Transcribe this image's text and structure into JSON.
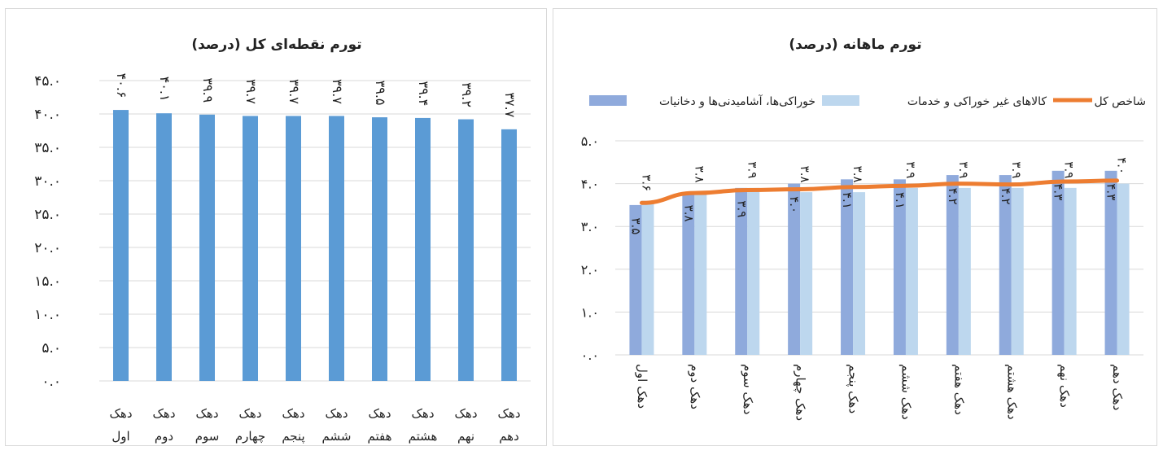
{
  "chart_data": [
    {
      "type": "bar",
      "title": "تورم نقطه‌ای کل (درصد)",
      "categories": [
        "دهک اول",
        "دهک دوم",
        "دهک سوم",
        "دهک چهارم",
        "دهک پنجم",
        "دهک ششم",
        "دهک هفتم",
        "دهک هشتم",
        "دهک نهم",
        "دهک دهم"
      ],
      "values": [
        40.6,
        40.1,
        39.9,
        39.7,
        39.7,
        39.7,
        39.5,
        39.4,
        39.2,
        37.7
      ],
      "value_labels": [
        "۴۰.۶",
        "۴۰.۱",
        "۳۹.۹",
        "۳۹.۷",
        "۳۹.۷",
        "۳۹.۷",
        "۳۹.۵",
        "۳۹.۴",
        "۳۹.۲",
        "۳۷.۷"
      ],
      "y_ticks": [
        0,
        5,
        10,
        15,
        20,
        25,
        30,
        35,
        40,
        45
      ],
      "y_tick_labels": [
        "۰.۰",
        "۵.۰",
        "۱۰.۰",
        "۱۵.۰",
        "۲۰.۰",
        "۲۵.۰",
        "۳۰.۰",
        "۳۵.۰",
        "۴۰.۰",
        "۴۵.۰"
      ],
      "ylim": [
        0,
        45
      ],
      "grid": true,
      "color": "#5b9bd5",
      "category_lines": [
        [
          "دهک",
          "اول"
        ],
        [
          "دهک",
          "دوم"
        ],
        [
          "دهک",
          "سوم"
        ],
        [
          "دهک",
          "چهارم"
        ],
        [
          "دهک",
          "پنجم"
        ],
        [
          "دهک",
          "ششم"
        ],
        [
          "دهک",
          "هفتم"
        ],
        [
          "دهک",
          "هشتم"
        ],
        [
          "دهک",
          "نهم"
        ],
        [
          "دهک",
          "دهم"
        ]
      ]
    },
    {
      "type": "bar",
      "title": "تورم ماهانه (درصد)",
      "categories": [
        "دهک اول",
        "دهک دوم",
        "دهک سوم",
        "دهک چهارم",
        "دهک پنجم",
        "دهک ششم",
        "دهک هفتم",
        "دهک هشتم",
        "دهک نهم",
        "دهک دهم"
      ],
      "legend_position": "top",
      "series": [
        {
          "name": "خوراکی‌ها، آشامیدنی‌ها و دخانیات",
          "type": "bar",
          "color": "#8faadc",
          "values": [
            3.5,
            3.8,
            3.9,
            4.0,
            4.1,
            4.1,
            4.2,
            4.2,
            4.3,
            4.3
          ],
          "value_labels": [
            "۳.۵",
            "۳.۸",
            "۳.۹",
            "۴.۰",
            "۴.۱",
            "۴.۱",
            "۴.۲",
            "۴.۲",
            "۴.۳",
            "۴.۳"
          ]
        },
        {
          "name": "کالاهای غیر خوراکی و خدمات",
          "type": "bar",
          "color": "#bdd7ee",
          "values": [
            3.6,
            3.8,
            3.9,
            3.8,
            3.8,
            3.9,
            3.9,
            3.9,
            3.9,
            4.0
          ],
          "value_labels": [
            "۳.۶",
            "۳.۸",
            "۳.۹",
            "۳.۸",
            "۳.۸",
            "۳.۹",
            "۳.۹",
            "۳.۹",
            "۳.۹",
            "۴.۰"
          ]
        },
        {
          "name": "شاخص کل",
          "type": "line",
          "color": "#ed7d31",
          "values": [
            3.55,
            3.78,
            3.85,
            3.87,
            3.92,
            3.95,
            4.0,
            3.98,
            4.05,
            4.07
          ]
        }
      ],
      "y_ticks": [
        0,
        1,
        2,
        3,
        4,
        5
      ],
      "y_tick_labels": [
        "۰.۰",
        "۱.۰",
        "۲.۰",
        "۳.۰",
        "۴.۰",
        "۵.۰"
      ],
      "ylim": [
        0,
        5
      ],
      "grid": true
    }
  ]
}
